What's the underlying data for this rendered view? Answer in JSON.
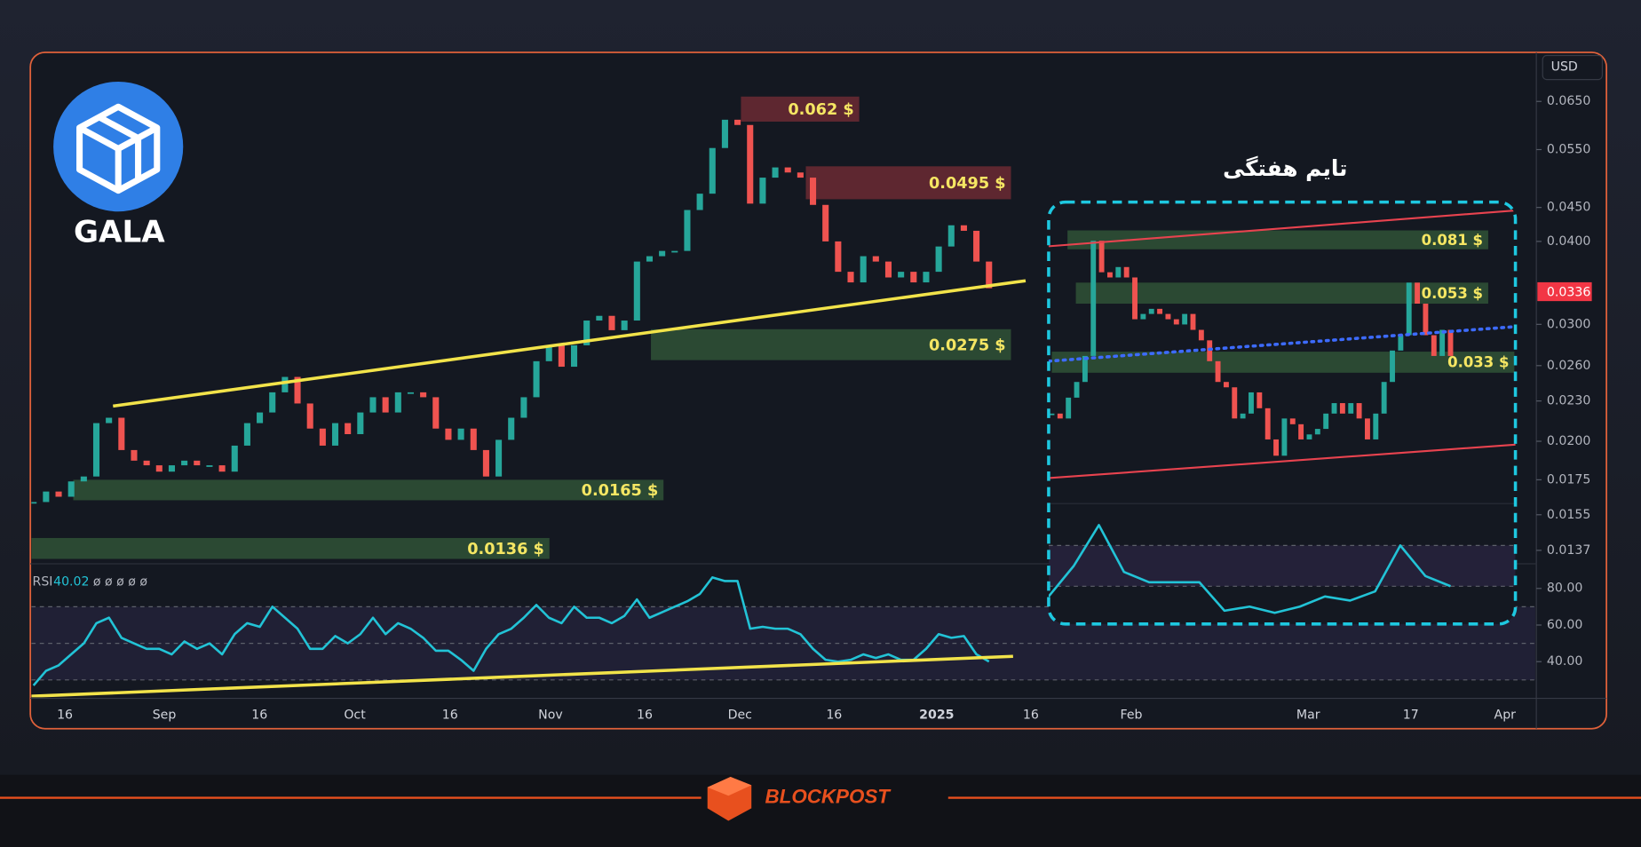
{
  "logo": {
    "name": "GALA"
  },
  "footer": {
    "brand": "BLOCKPOST"
  },
  "chart_data": [
    {
      "type": "candlestick",
      "scale": "log",
      "currency": "USD",
      "ylim": [
        0.0131,
        0.0765
      ],
      "yticks": [
        {
          "value": 0.065,
          "label": "0.0650"
        },
        {
          "value": 0.055,
          "label": "0.0550"
        },
        {
          "value": 0.045,
          "label": "0.0450"
        },
        {
          "value": 0.04,
          "label": "0.0400"
        },
        {
          "value": 0.03,
          "label": "0.0300"
        },
        {
          "value": 0.026,
          "label": "0.0260"
        },
        {
          "value": 0.023,
          "label": "0.0230"
        },
        {
          "value": 0.02,
          "label": "0.0200"
        },
        {
          "value": 0.0175,
          "label": "0.0175"
        },
        {
          "value": 0.0155,
          "label": "0.0155"
        },
        {
          "value": 0.0137,
          "label": "0.0137"
        }
      ],
      "last_price": {
        "value": 0.0336,
        "label": "0.0336",
        "color": "#f23645"
      },
      "x_labels": [
        "16",
        "Sep",
        "16",
        "Oct",
        "16",
        "Nov",
        "16",
        "Dec",
        "16",
        "2025",
        "16",
        "Feb",
        "Mar",
        "17",
        "Apr"
      ],
      "series": [
        {
          "up_color": "#26a69a",
          "down_color": "#ef5350",
          "values": [
            0.0162,
            0.0168,
            0.0165,
            0.0174,
            0.0177,
            0.0213,
            0.0217,
            0.0194,
            0.0187,
            0.0184,
            0.018,
            0.0184,
            0.0187,
            0.0184,
            0.0184,
            0.018,
            0.0197,
            0.0213,
            0.0221,
            0.0237,
            0.025,
            0.0228,
            0.0209,
            0.0197,
            0.0213,
            0.0205,
            0.0221,
            0.0233,
            0.0221,
            0.0237,
            0.0237,
            0.0233,
            0.0209,
            0.0201,
            0.0209,
            0.0194,
            0.0177,
            0.0201,
            0.0217,
            0.0233,
            0.0264,
            0.0279,
            0.0259,
            0.0279,
            0.0304,
            0.0309,
            0.0294,
            0.0304,
            0.0373,
            0.038,
            0.0387,
            0.0387,
            0.0446,
            0.0472,
            0.0553,
            0.061,
            0.0599,
            0.0456,
            0.0499,
            0.0517,
            0.0508,
            0.0499,
            0.0454,
            0.04,
            0.036,
            0.0347,
            0.038,
            0.0373,
            0.0353,
            0.036,
            0.0347,
            0.036,
            0.0393,
            0.0423,
            0.0415,
            0.0373,
            0.034
          ]
        }
      ],
      "label_color": "#f5e663",
      "zones": [
        {
          "label": "0.062 $",
          "range": [
            0.0606,
            0.0661
          ],
          "color": "#6b2a33"
        },
        {
          "label": "0.0495 $",
          "range": [
            0.0463,
            0.0519
          ],
          "color": "#6b2a33"
        },
        {
          "label": "0.0275 $",
          "range": [
            0.0265,
            0.0295
          ],
          "color": "#2f5236"
        },
        {
          "label": "0.0165 $",
          "range": [
            0.0163,
            0.0175
          ],
          "color": "#2f5236"
        },
        {
          "label": "0.0136 $",
          "range": [
            0.0133,
            0.0143
          ],
          "color": "#2f5236"
        }
      ],
      "trendline": {
        "values": [
          0.0226,
          0.0349
        ],
        "color": "#f2e34a"
      },
      "rsi": {
        "label": "RSI",
        "extra": "ø ø ø ø ø",
        "color": "#22c3d6",
        "ylim": [
          21.1,
          92.6
        ],
        "band": [
          30,
          70
        ],
        "levels": [
          30,
          50,
          70
        ],
        "yticks": [
          {
            "value": 80,
            "label": "80.00"
          },
          {
            "value": 60,
            "label": "60.00"
          },
          {
            "value": 40,
            "label": "40.00"
          }
        ],
        "values": [
          27,
          35,
          38,
          44,
          50,
          61,
          64,
          53,
          50,
          47,
          47,
          44,
          51,
          47,
          50,
          44,
          55,
          61,
          59,
          70,
          64,
          58,
          47,
          47,
          54,
          50,
          55,
          64,
          55,
          61,
          58,
          53,
          46,
          46,
          41,
          35,
          47,
          55,
          58,
          64,
          71,
          64,
          61,
          70,
          64,
          64,
          61,
          65,
          74,
          64,
          67,
          70,
          73,
          77,
          86,
          84,
          84,
          58,
          59,
          58,
          58,
          55,
          47,
          41,
          40,
          41,
          44,
          42,
          44,
          41,
          41,
          47,
          55,
          53,
          54,
          44,
          40.02
        ],
        "trendline": {
          "values": [
            21.1,
            42.9
          ],
          "color": "#f2e34a"
        }
      }
    },
    {
      "type": "candlestick",
      "scale": "log",
      "title": "تایم هفتگی",
      "ylim": [
        0.0116,
        0.1014
      ],
      "series": [
        {
          "up_color": "#26a69a",
          "down_color": "#ef5350",
          "values": [
            0.0224,
            0.0216,
            0.0252,
            0.0283,
            0.0343,
            0.0804,
            0.0637,
            0.0613,
            0.0662,
            0.0613,
            0.045,
            0.0468,
            0.0486,
            0.0468,
            0.045,
            0.0433,
            0.0468,
            0.0416,
            0.0385,
            0.033,
            0.0283,
            0.0272,
            0.0216,
            0.0224,
            0.0262,
            0.0233,
            0.0185,
            0.0164,
            0.0216,
            0.0207,
            0.0185,
            0.0192,
            0.02,
            0.0224,
            0.0242,
            0.0224,
            0.0242,
            0.0216,
            0.0185,
            0.0224,
            0.0283,
            0.0357,
            0.04,
            0.059,
            0.0505,
            0.04,
            0.0343,
            0.0416,
            0.0343
          ]
        }
      ],
      "label_color": "#f5e663",
      "zones": [
        {
          "label": "0.081 $",
          "range": [
            0.0755,
            0.0868
          ],
          "color": "#2f5236"
        },
        {
          "label": "0.053 $",
          "range": [
            0.0505,
            0.059
          ],
          "color": "#2f5236"
        },
        {
          "label": "0.033 $",
          "range": [
            0.0303,
            0.0354
          ],
          "color": "#2f5236"
        }
      ],
      "lines": [
        {
          "values": [
            0.0772,
            0.1006
          ],
          "color": "#e8434f",
          "dotted": false
        },
        {
          "values": [
            0.0139,
            0.0178
          ],
          "color": "#e8434f",
          "dotted": false
        },
        {
          "values": [
            0.033,
            0.0426
          ],
          "color": "#3d6bff",
          "dotted": true
        }
      ],
      "frame_color": "#1ec8e0",
      "rsi": {
        "color": "#22c3d6",
        "ylim": [
          31.5,
          90
        ],
        "band": [
          50,
          70
        ],
        "values": [
          45,
          60,
          80,
          57,
          52,
          52,
          52,
          38,
          40,
          37,
          40,
          45,
          43,
          47.5,
          70,
          55,
          50
        ]
      }
    }
  ]
}
